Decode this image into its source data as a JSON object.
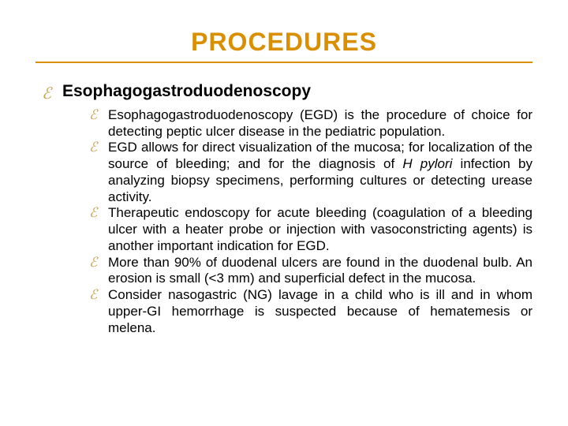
{
  "title": {
    "text": "PROCEDURES",
    "color": "#d98f00",
    "fontsize": 32,
    "fontweight": "bold"
  },
  "rule": {
    "color": "#d98f00",
    "height": 2
  },
  "background_color": "#ffffff",
  "text_color": "#000000",
  "main_bullet": {
    "glyph": "ℰ",
    "color": "#c7a252",
    "fontsize": 20
  },
  "sub_bullet": {
    "glyph": "ℰ",
    "color": "#c7a252",
    "fontsize": 17
  },
  "main": {
    "label": "Esophagogastroduodenoscopy",
    "fontsize": 21
  },
  "sub": {
    "fontsize": 17,
    "items": [
      {
        "before": "Esophagogastroduodenoscopy (EGD) is the procedure of choice for detecting peptic ulcer disease in the pediatric population.",
        "em": "",
        "after": ""
      },
      {
        "before": "EGD allows for direct visualization of the mucosa; for localization of the source of bleeding; and for the diagnosis of ",
        "em": "H pylori",
        "after": " infection by analyzing biopsy specimens, performing cultures or detecting urease activity."
      },
      {
        "before": "Therapeutic endoscopy for acute bleeding (coagulation of a bleeding ulcer with a heater probe or injection with vasoconstricting agents) is another important indication for EGD.",
        "em": "",
        "after": ""
      },
      {
        "before": "More than 90% of duodenal ulcers are found in the duodenal bulb. An erosion is small (<3 mm) and superficial defect in the mucosa.",
        "em": "",
        "after": ""
      },
      {
        "before": "Consider nasogastric (NG) lavage in a child who is ill and in whom upper-GI hemorrhage is suspected because of hematemesis or melena.",
        "em": "",
        "after": ""
      }
    ]
  }
}
